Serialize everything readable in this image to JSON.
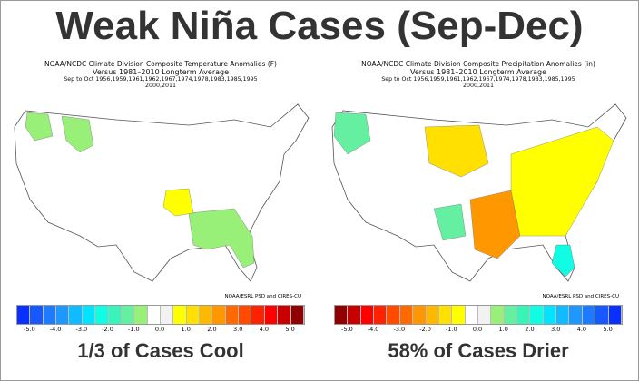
{
  "title": "Weak Niña Cases (Sep-Dec)",
  "panels": [
    {
      "line1": "NOAA/NCDC Climate Division Composite Temperature Anomalies (F)",
      "line2": "Versus 1981–2010 Longterm Average",
      "line3": "Sep to Oct  1956,1959,1961,1962,1967,1974,1978,1983,1985,1995",
      "line4": "2000,2011",
      "credit": "NOAA/ESRL PSD and CIRES-CU",
      "caption": "1/3 of Cases Cool",
      "colors": [
        "#0a30ff",
        "#1858ff",
        "#1e7aff",
        "#1d98ff",
        "#10bcff",
        "#00e4ff",
        "#10fde4",
        "#38f4b8",
        "#64f0a0",
        "#98f078",
        "#ffffff",
        "#f2f2f2",
        "#ffff00",
        "#ffe000",
        "#ffb800",
        "#ff9800",
        "#ff6a00",
        "#ff4a00",
        "#ff2200",
        "#ff0000",
        "#c80000",
        "#900000"
      ],
      "ticks": [
        "-5.0",
        "-4.0",
        "-3.0",
        "-2.0",
        "-1.0",
        "0.0",
        "1.0",
        "2.0",
        "3.0",
        "4.0",
        "5.0"
      ]
    },
    {
      "line1": "NOAA/NCDC Climate Division Composite Precipitation Anomalies (in)",
      "line2": "Versus 1981–2010 Longterm Average",
      "line3": "Sep to Oct  1956,1959,1961,1962,1967,1974,1978,1983,1985,1995",
      "line4": "2000,2011",
      "credit": "NOAA/ESRL PSD and CIRES-CU",
      "caption": "58% of Cases Drier",
      "colors": [
        "#900000",
        "#c80000",
        "#ff0000",
        "#ff2200",
        "#ff4a00",
        "#ff6a00",
        "#ff9800",
        "#ffb800",
        "#ffe000",
        "#ffff00",
        "#ffffff",
        "#f2f2f2",
        "#98f078",
        "#64f0a0",
        "#38f4b8",
        "#10fde4",
        "#00e4ff",
        "#10bcff",
        "#1d98ff",
        "#1e7aff",
        "#1858ff",
        "#0a30ff"
      ],
      "ticks": [
        "-5.0",
        "-4.0",
        "-3.0",
        "-2.0",
        "-1.0",
        "0.0",
        "1.0",
        "2.0",
        "3.0",
        "4.0",
        "5.0"
      ]
    }
  ]
}
